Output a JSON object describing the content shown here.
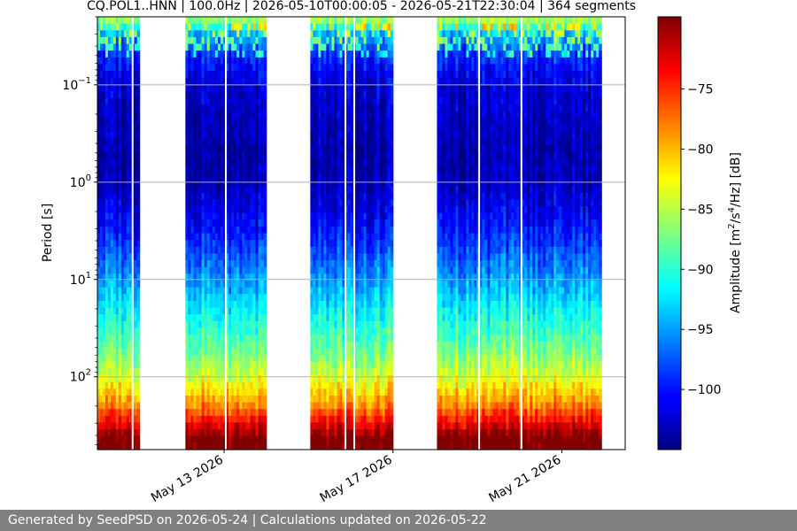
{
  "chart_data": {
    "type": "heatmap",
    "title": "CQ.POL1..HNN | 100.0Hz | 2026-05-10T00:00:05 - 2026-05-21T22:30:04 | 364 segments",
    "ylabel": "Period [s]",
    "colorbar_label_parts": [
      "Amplitude [m",
      "2",
      "/s",
      "4",
      "/Hz] [dB]"
    ],
    "y_scale": "log",
    "y_inverted": true,
    "ylim": [
      0.02,
      560
    ],
    "y_ticks": [
      {
        "value": 0.1,
        "base": "10",
        "exp": "−1"
      },
      {
        "value": 1,
        "base": "10",
        "exp": "0"
      },
      {
        "value": 10,
        "base": "10",
        "exp": "1"
      },
      {
        "value": 100,
        "base": "10",
        "exp": "2"
      }
    ],
    "grid": "horizontal",
    "xlim": [
      "2026-05-10",
      "2026-05-22T12:00"
    ],
    "x_ticks": [
      {
        "date": "2026-05-13",
        "label": "May 13 2026"
      },
      {
        "date": "2026-05-17",
        "label": "May 17 2026"
      },
      {
        "date": "2026-05-21",
        "label": "May 21 2026"
      }
    ],
    "data_blocks": [
      {
        "start": "2026-05-10T00:00:05",
        "end": "2026-05-10T23:59"
      },
      {
        "start": "2026-05-12T02:00",
        "end": "2026-05-14T00:00"
      },
      {
        "start": "2026-05-15T01:00",
        "end": "2026-05-17T00:00"
      },
      {
        "start": "2026-05-18T01:00",
        "end": "2026-05-21T22:30:04"
      }
    ],
    "missing_segment_lines": [
      "2026-05-10T20:00",
      "2026-05-13T01:00",
      "2026-05-15T21:00",
      "2026-05-16T02:00",
      "2026-05-19T01:00",
      "2026-05-20T01:00"
    ],
    "colorbar": {
      "colormap": "jet",
      "range": [
        -105,
        -69
      ],
      "ticks": [
        -75,
        -80,
        -85,
        -90,
        -95,
        -100
      ]
    },
    "profile_db": [
      {
        "period": 0.02,
        "db": -84
      },
      {
        "period": 0.03,
        "db": -94
      },
      {
        "period": 0.05,
        "db": -99
      },
      {
        "period": 0.1,
        "db": -102
      },
      {
        "period": 0.5,
        "db": -103.5
      },
      {
        "period": 1,
        "db": -103
      },
      {
        "period": 3,
        "db": -100
      },
      {
        "period": 10,
        "db": -95
      },
      {
        "period": 30,
        "db": -90
      },
      {
        "period": 60,
        "db": -87
      },
      {
        "period": 100,
        "db": -84
      },
      {
        "period": 200,
        "db": -78
      },
      {
        "period": 300,
        "db": -73
      },
      {
        "period": 440,
        "db": -68
      },
      {
        "period": 560,
        "db": -68
      }
    ]
  },
  "footer": {
    "text": "Generated by SeedPSD on 2026-05-24 | Calculations updated on 2026-05-22"
  }
}
